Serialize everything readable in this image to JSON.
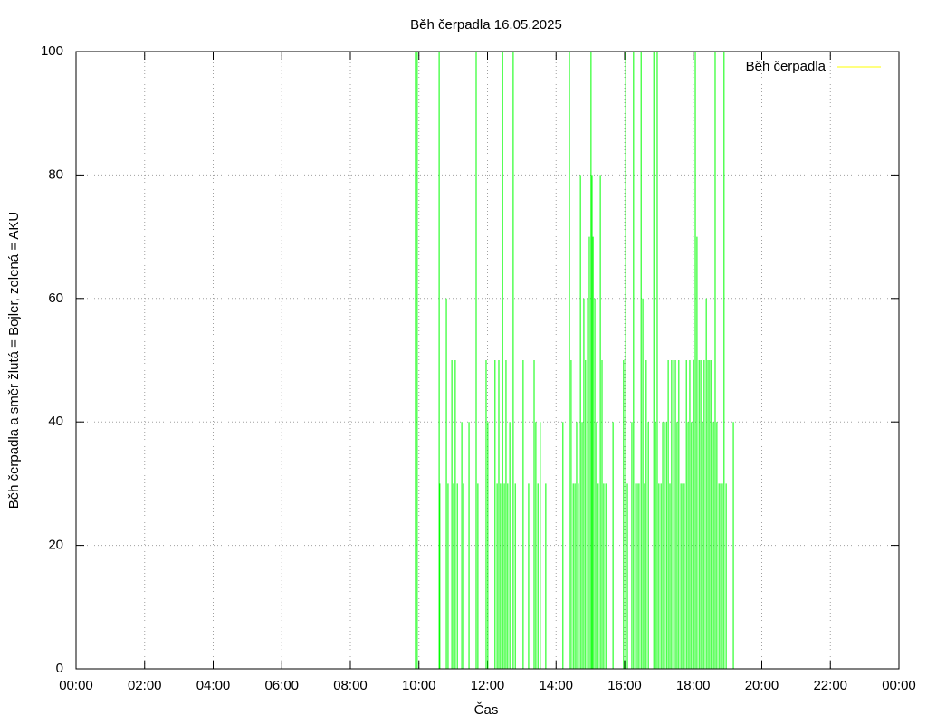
{
  "chart_data": {
    "type": "impulses",
    "title": "Běh čerpadla 16.05.2025",
    "x_label": "Čas",
    "y_label": "Běh čerpadla a směr žlutá = Bojler, zelená = AKU",
    "xlim": [
      0,
      24
    ],
    "xticks": [
      {
        "value": 0,
        "label": "00:00"
      },
      {
        "value": 2,
        "label": "02:00"
      },
      {
        "value": 4,
        "label": "04:00"
      },
      {
        "value": 6,
        "label": "06:00"
      },
      {
        "value": 8,
        "label": "08:00"
      },
      {
        "value": 10,
        "label": "10:00"
      },
      {
        "value": 12,
        "label": "12:00"
      },
      {
        "value": 14,
        "label": "14:00"
      },
      {
        "value": 16,
        "label": "16:00"
      },
      {
        "value": 18,
        "label": "18:00"
      },
      {
        "value": 20,
        "label": "20:00"
      },
      {
        "value": 22,
        "label": "22:00"
      },
      {
        "value": 24,
        "label": "00:00"
      }
    ],
    "ylim": [
      0,
      100
    ],
    "yticks": [
      0,
      20,
      40,
      60,
      80,
      100
    ],
    "grid": true,
    "legend": "top-right",
    "legend_color": "#ffff00",
    "series": [
      {
        "name": "Běh čerpadla",
        "color": "#00ff00",
        "x": [
          9.9,
          9.95,
          10.59,
          10.61,
          10.8,
          10.85,
          10.96,
          11.01,
          11.06,
          11.12,
          11.25,
          11.3,
          11.46,
          11.67,
          11.72,
          11.96,
          12.01,
          12.22,
          12.28,
          12.33,
          12.38,
          12.44,
          12.49,
          12.54,
          12.59,
          12.65,
          12.75,
          12.81,
          13.04,
          13.2,
          13.36,
          13.41,
          13.47,
          13.54,
          13.7,
          14.2,
          14.39,
          14.44,
          14.5,
          14.55,
          14.6,
          14.65,
          14.71,
          14.76,
          14.81,
          14.86,
          14.92,
          14.97,
          15.02,
          15.05,
          15.08,
          15.13,
          15.18,
          15.23,
          15.29,
          15.34,
          15.39,
          15.45,
          15.66,
          15.97,
          16.03,
          16.08,
          16.21,
          16.26,
          16.32,
          16.37,
          16.42,
          16.48,
          16.53,
          16.58,
          16.63,
          16.69,
          16.85,
          16.9,
          16.95,
          17.0,
          17.06,
          17.11,
          17.16,
          17.22,
          17.27,
          17.32,
          17.37,
          17.43,
          17.48,
          17.53,
          17.58,
          17.64,
          17.69,
          17.74,
          17.8,
          17.85,
          17.9,
          17.95,
          18.01,
          18.06,
          18.11,
          18.17,
          18.22,
          18.27,
          18.32,
          18.38,
          18.43,
          18.48,
          18.53,
          18.59,
          18.64,
          18.69,
          18.75,
          18.8,
          18.85,
          18.9,
          18.96,
          19.17
        ],
        "values": [
          100,
          100,
          100,
          30,
          60,
          30,
          50,
          30,
          50,
          30,
          40,
          30,
          40,
          100,
          30,
          50,
          40,
          50,
          30,
          50,
          30,
          100,
          30,
          50,
          30,
          40,
          100,
          30,
          50,
          30,
          50,
          40,
          30,
          40,
          30,
          40,
          100,
          50,
          30,
          30,
          40,
          30,
          80,
          40,
          60,
          50,
          60,
          70,
          100,
          80,
          70,
          60,
          40,
          30,
          80,
          50,
          30,
          30,
          40,
          50,
          100,
          30,
          40,
          100,
          30,
          30,
          30,
          100,
          60,
          30,
          50,
          40,
          100,
          40,
          100,
          30,
          30,
          40,
          40,
          40,
          50,
          30,
          50,
          50,
          50,
          40,
          50,
          30,
          30,
          30,
          50,
          40,
          50,
          40,
          50,
          100,
          70,
          50,
          50,
          40,
          50,
          60,
          50,
          50,
          50,
          40,
          100,
          40,
          30,
          30,
          30,
          100,
          30,
          40
        ]
      }
    ]
  }
}
